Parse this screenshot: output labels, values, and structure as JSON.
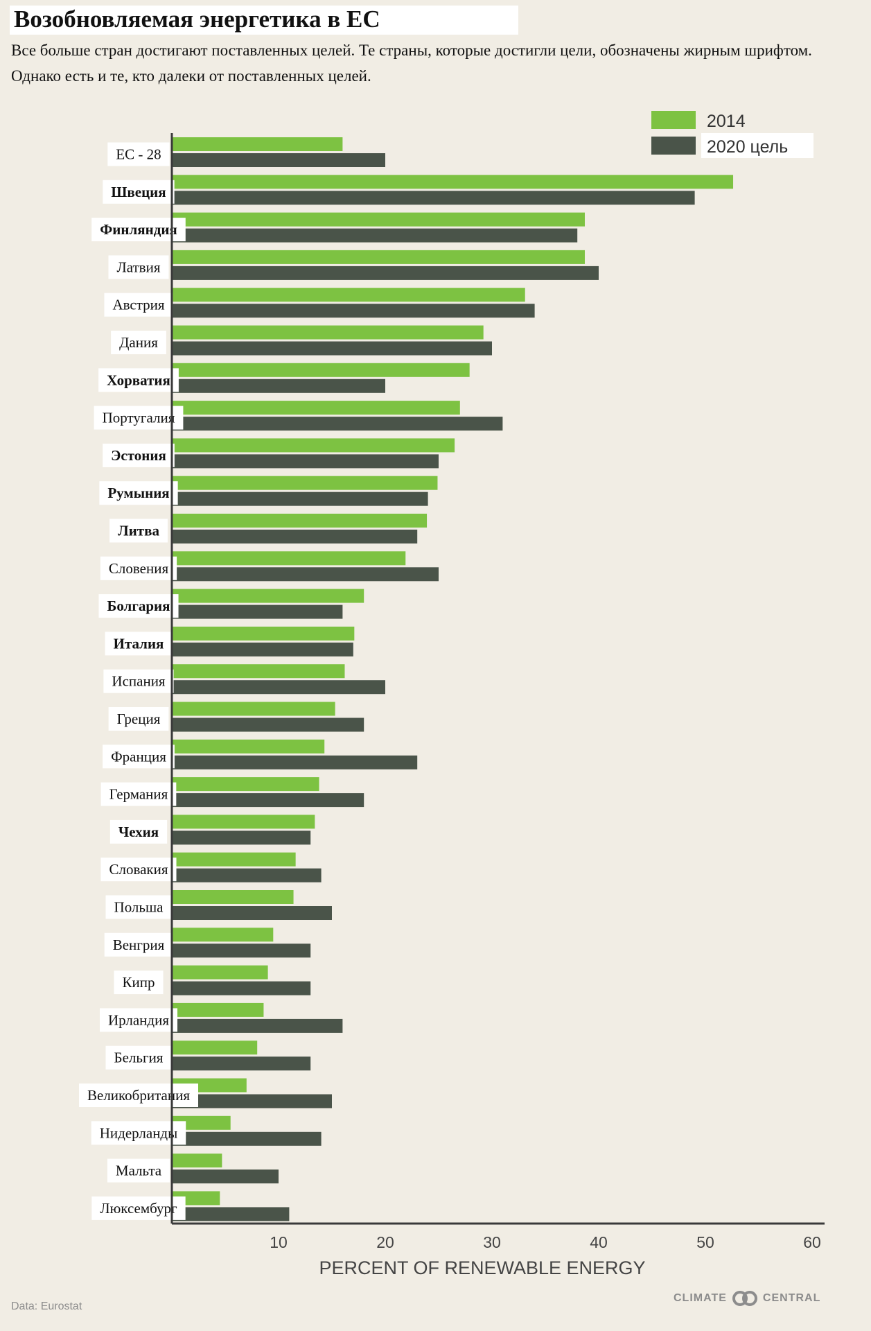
{
  "title": "Возобновляемая энергетика в ЕС",
  "subtitle": "Все больше стран достигают поставленных целей. Те страны, которые достигли цели, обозначены жирным шрифтом. Однако есть и те, кто далеки от поставленных целей.",
  "source": "Data: Eurostat",
  "brand": {
    "text_left": "CLIMATE",
    "text_right": "CENTRAL",
    "logo_icon": "interlocking-rings-icon"
  },
  "colors": {
    "series_2014": "#7dc242",
    "series_2020": "#4a5449",
    "axis": "#3a3a3a",
    "background": "#f1ede4",
    "label_box": "#ffffff",
    "muted_text": "#8c8c8c"
  },
  "chart_data": {
    "type": "bar",
    "orientation": "horizontal",
    "xlabel": "PERCENT OF RENEWABLE ENERGY",
    "xlim": [
      0,
      60
    ],
    "xticks": [
      10,
      20,
      30,
      40,
      50,
      60
    ],
    "grid": false,
    "legend_position": "top-right",
    "categories": [
      "ЕС - 28",
      "Швеция",
      "Финляндия",
      "Латвия",
      "Австрия",
      "Дания",
      "Хорватия",
      "Португалия",
      "Эстония",
      "Румыния",
      "Литва",
      "Словения",
      "Болгария",
      "Италия",
      "Испания",
      "Греция",
      "Франция",
      "Германия",
      "Чехия",
      "Словакия",
      "Польша",
      "Венгрия",
      "Кипр",
      "Ирландия",
      "Бельгия",
      "Великобритания",
      "Нидерланды",
      "Мальта",
      "Люксембург"
    ],
    "bold_categories": [
      "Швеция",
      "Финляндия",
      "Хорватия",
      "Эстония",
      "Румыния",
      "Литва",
      "Болгария",
      "Италия",
      "Чехия"
    ],
    "series": [
      {
        "name": "2014",
        "values": [
          16.0,
          52.6,
          38.7,
          38.7,
          33.1,
          29.2,
          27.9,
          27.0,
          26.5,
          24.9,
          23.9,
          21.9,
          18.0,
          17.1,
          16.2,
          15.3,
          14.3,
          13.8,
          13.4,
          11.6,
          11.4,
          9.5,
          9.0,
          8.6,
          8.0,
          7.0,
          5.5,
          4.7,
          4.5
        ]
      },
      {
        "name": "2020 цель",
        "values": [
          20,
          49,
          38,
          40,
          34,
          30,
          20,
          31,
          25,
          24,
          23,
          25,
          16,
          17,
          20,
          18,
          23,
          18,
          13,
          14,
          15,
          13,
          13,
          16,
          13,
          15,
          14,
          10,
          11
        ]
      }
    ]
  }
}
